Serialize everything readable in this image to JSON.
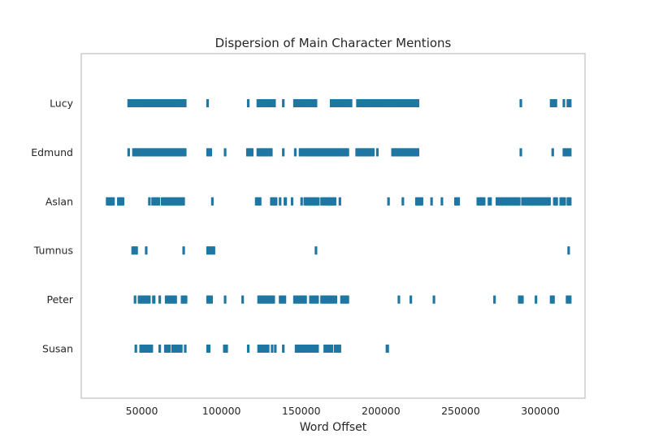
{
  "chart_data": {
    "type": "scatter",
    "title": "Dispersion of Main Character Mentions",
    "xlabel": "Word Offset",
    "ylabel": "",
    "xlim": [
      12000,
      328000
    ],
    "x_ticks": [
      50000,
      100000,
      150000,
      200000,
      250000,
      300000
    ],
    "x_tick_labels": [
      "50000",
      "100000",
      "150000",
      "200000",
      "250000",
      "300000"
    ],
    "categories": [
      "Lucy",
      "Edmund",
      "Aslan",
      "Tumnus",
      "Peter",
      "Susan"
    ],
    "grid": false,
    "legend": "none",
    "color": "#1f77a3",
    "series": [
      {
        "name": "Lucy",
        "ranges": [
          [
            41500,
            77500
          ],
          [
            91000,
            91600
          ],
          [
            116500,
            117000
          ],
          [
            122500,
            133500
          ],
          [
            138500,
            139000
          ],
          [
            145500,
            159500
          ],
          [
            168500,
            181500
          ],
          [
            185000,
            223500
          ],
          [
            287500,
            288000
          ],
          [
            306500,
            310000
          ],
          [
            314500,
            315000
          ],
          [
            317000,
            319000
          ]
        ]
      },
      {
        "name": "Edmund",
        "ranges": [
          [
            41500,
            42000
          ],
          [
            44500,
            77500
          ],
          [
            91000,
            93500
          ],
          [
            102000,
            102500
          ],
          [
            116000,
            119500
          ],
          [
            122500,
            131500
          ],
          [
            138500,
            139000
          ],
          [
            146000,
            146500
          ],
          [
            149000,
            179500
          ],
          [
            184500,
            195500
          ],
          [
            197500,
            198000
          ],
          [
            207000,
            223500
          ],
          [
            287500,
            288000
          ],
          [
            307500,
            308000
          ],
          [
            314500,
            319000
          ]
        ]
      },
      {
        "name": "Aslan",
        "ranges": [
          [
            28000,
            32500
          ],
          [
            35000,
            38500
          ],
          [
            54500,
            55000
          ],
          [
            56500,
            61000
          ],
          [
            62500,
            76500
          ],
          [
            94000,
            94500
          ],
          [
            121500,
            124500
          ],
          [
            131000,
            134500
          ],
          [
            136500,
            137000
          ],
          [
            139500,
            140500
          ],
          [
            144000,
            144500
          ],
          [
            150000,
            150500
          ],
          [
            152000,
            161000
          ],
          [
            162500,
            171500
          ],
          [
            174000,
            174500
          ],
          [
            204500,
            205000
          ],
          [
            213500,
            214000
          ],
          [
            222000,
            226000
          ],
          [
            231500,
            232000
          ],
          [
            238000,
            238500
          ],
          [
            246500,
            249000
          ],
          [
            260500,
            265000
          ],
          [
            267500,
            269000
          ],
          [
            272500,
            287000
          ],
          [
            288500,
            306000
          ],
          [
            308500,
            310500
          ],
          [
            312500,
            315500
          ],
          [
            317000,
            319000
          ]
        ]
      },
      {
        "name": "Tumnus",
        "ranges": [
          [
            44000,
            47000
          ],
          [
            52500,
            53000
          ],
          [
            76000,
            76500
          ],
          [
            91000,
            95500
          ],
          [
            159000,
            159500
          ],
          [
            317500,
            318000
          ]
        ]
      },
      {
        "name": "Peter",
        "ranges": [
          [
            45500,
            46000
          ],
          [
            48000,
            55000
          ],
          [
            57000,
            58000
          ],
          [
            61000,
            61500
          ],
          [
            65000,
            71500
          ],
          [
            75000,
            78000
          ],
          [
            91000,
            94000
          ],
          [
            102000,
            102500
          ],
          [
            113000,
            113500
          ],
          [
            123000,
            133000
          ],
          [
            136500,
            140000
          ],
          [
            145500,
            153000
          ],
          [
            155500,
            160500
          ],
          [
            162500,
            170500
          ],
          [
            171500,
            172000
          ],
          [
            175000,
            179500
          ],
          [
            211000,
            211500
          ],
          [
            218500,
            219000
          ],
          [
            233000,
            233500
          ],
          [
            271000,
            271500
          ],
          [
            286500,
            289000
          ],
          [
            297000,
            297500
          ],
          [
            306500,
            308500
          ],
          [
            316500,
            319000
          ]
        ]
      },
      {
        "name": "Susan",
        "ranges": [
          [
            46000,
            46500
          ],
          [
            49000,
            56500
          ],
          [
            61000,
            61500
          ],
          [
            64500,
            67500
          ],
          [
            69000,
            75000
          ],
          [
            77000,
            77500
          ],
          [
            91000,
            92500
          ],
          [
            101500,
            103500
          ],
          [
            116500,
            117000
          ],
          [
            123000,
            129500
          ],
          [
            131500,
            132000
          ],
          [
            133500,
            134000
          ],
          [
            138500,
            139000
          ],
          [
            146500,
            160500
          ],
          [
            164500,
            169500
          ],
          [
            171000,
            174500
          ],
          [
            203500,
            204500
          ]
        ]
      }
    ]
  }
}
